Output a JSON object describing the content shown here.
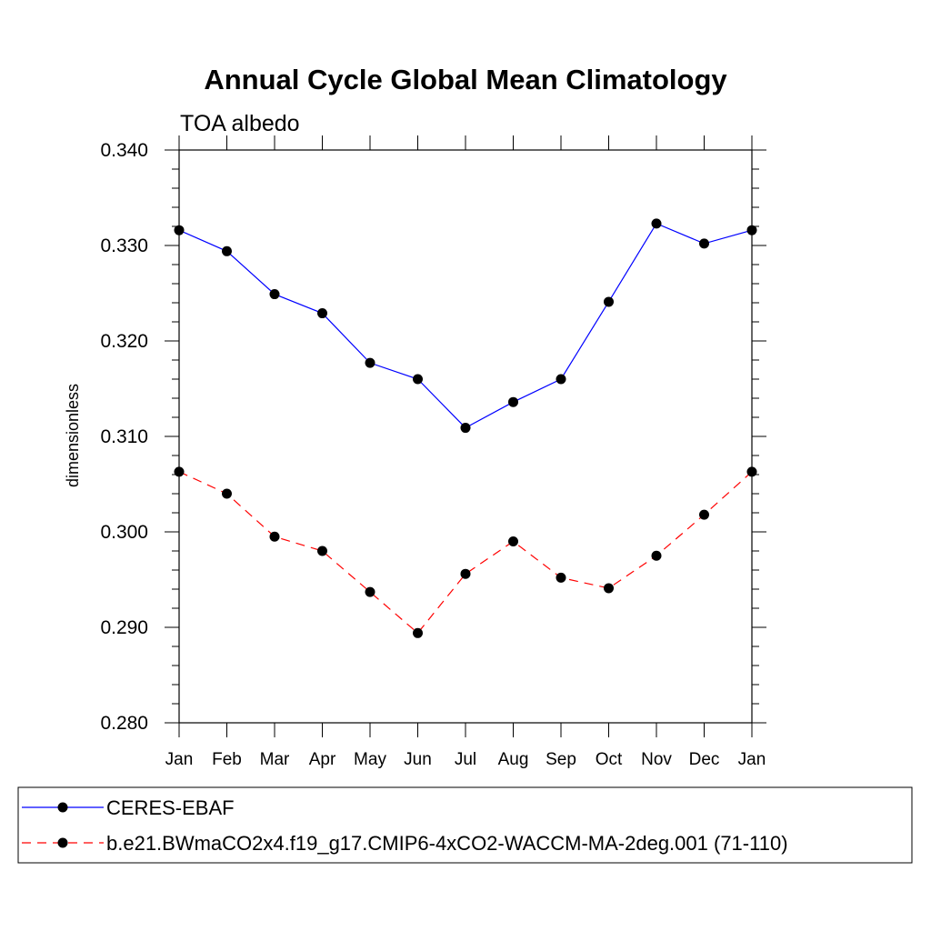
{
  "chart_data": {
    "type": "line",
    "title": "Annual Cycle Global Mean Climatology",
    "subtitle": "TOA albedo",
    "xlabel": "",
    "ylabel": "dimensionless",
    "categories": [
      "Jan",
      "Feb",
      "Mar",
      "Apr",
      "May",
      "Jun",
      "Jul",
      "Aug",
      "Sep",
      "Oct",
      "Nov",
      "Dec",
      "Jan"
    ],
    "ylim": [
      0.28,
      0.34
    ],
    "yticks": [
      "0.280",
      "0.290",
      "0.300",
      "0.310",
      "0.320",
      "0.330",
      "0.340"
    ],
    "grid": false,
    "legend_position": "bottom",
    "series": [
      {
        "name": "CERES-EBAF",
        "color": "#0000ff",
        "dash": "solid",
        "marker": "filled-circle",
        "values": [
          0.3316,
          0.3294,
          0.3249,
          0.3229,
          0.3177,
          0.316,
          0.3109,
          0.3136,
          0.316,
          0.3241,
          0.3323,
          0.3302,
          0.3316
        ]
      },
      {
        "name": "b.e21.BWmaCO2x4.f19_g17.CMIP6-4xCO2-WACCM-MA-2deg.001 (71-110)",
        "color": "#ff0000",
        "dash": "dashed",
        "marker": "filled-circle",
        "values": [
          0.3063,
          0.304,
          0.2995,
          0.298,
          0.2937,
          0.2894,
          0.2956,
          0.299,
          0.2952,
          0.2941,
          0.2975,
          0.3018,
          0.3063
        ]
      }
    ]
  }
}
